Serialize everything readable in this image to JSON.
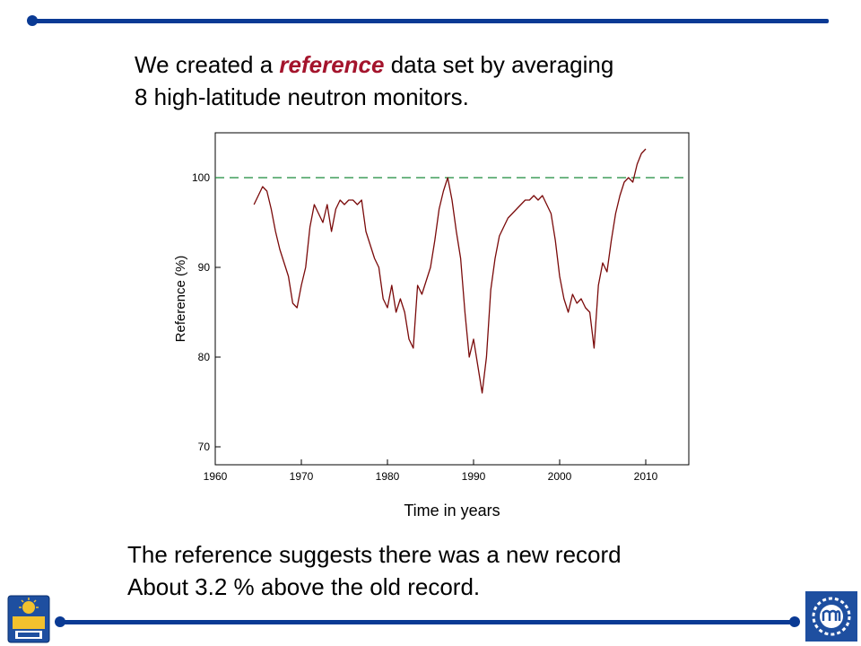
{
  "slide": {
    "headline_pre": "We created a ",
    "headline_em": "reference",
    "headline_post": " data set by averaging",
    "headline_line2": "8 high-latitude neutron monitors.",
    "caption_line1": "The reference suggests there was a new record",
    "caption_line2": "About 3.2 % above the old record."
  },
  "colors": {
    "accent_blue": "#0a3a94",
    "emphasis_red": "#a4142c",
    "series_line": "#7a0a0a",
    "reference_line": "#1a8a3a"
  },
  "logos": {
    "left_icon": "university-of-delaware-logo",
    "right_icon": "institution-laurel-logo"
  },
  "chart_data": {
    "type": "line",
    "title": "",
    "xlabel": "Time in years",
    "ylabel": "Reference (%)",
    "xlim": [
      1960,
      2015
    ],
    "ylim": [
      68,
      105
    ],
    "x_ticks": [
      1960,
      1970,
      1980,
      1990,
      2000,
      2010
    ],
    "y_ticks": [
      70,
      80,
      90,
      100
    ],
    "reference_line": {
      "y": 100,
      "style": "dashed"
    },
    "grid": false,
    "series": [
      {
        "x": [
          1964.5,
          1965.0,
          1965.5,
          1966.0,
          1966.5,
          1967.0,
          1967.5,
          1968.0,
          1968.5,
          1969.0,
          1969.5,
          1970.0,
          1970.5,
          1971.0,
          1971.5,
          1972.0,
          1972.5,
          1973.0,
          1973.5,
          1974.0,
          1974.5,
          1975.0,
          1975.5,
          1976.0,
          1976.5,
          1977.0,
          1977.5,
          1978.0,
          1978.5,
          1979.0,
          1979.5,
          1980.0,
          1980.5,
          1981.0,
          1981.5,
          1982.0,
          1982.5,
          1983.0,
          1983.5,
          1984.0,
          1984.5,
          1985.0,
          1985.5,
          1986.0,
          1986.5,
          1987.0,
          1987.5,
          1988.0,
          1988.5,
          1989.0,
          1989.5,
          1990.0,
          1990.5,
          1991.0,
          1991.5,
          1992.0,
          1992.5,
          1993.0,
          1993.5,
          1994.0,
          1994.5,
          1995.0,
          1995.5,
          1996.0,
          1996.5,
          1997.0,
          1997.5,
          1998.0,
          1998.5,
          1999.0,
          1999.5,
          2000.0,
          2000.5,
          2001.0,
          2001.5,
          2002.0,
          2002.5,
          2003.0,
          2003.5,
          2004.0,
          2004.5,
          2005.0,
          2005.5,
          2006.0,
          2006.5,
          2007.0,
          2007.5,
          2008.0,
          2008.5,
          2009.0,
          2009.5,
          2010.0
        ],
        "values": [
          97.0,
          98.0,
          99.0,
          98.5,
          96.5,
          94.0,
          92.0,
          90.5,
          89.0,
          86.0,
          85.5,
          88.0,
          90.0,
          94.5,
          97.0,
          96.0,
          95.0,
          97.0,
          94.0,
          96.5,
          97.5,
          97.0,
          97.5,
          97.5,
          97.0,
          97.5,
          94.0,
          92.5,
          91.0,
          90.0,
          86.5,
          85.5,
          88.0,
          85.0,
          86.5,
          85.0,
          82.0,
          81.0,
          88.0,
          87.0,
          88.5,
          90.0,
          93.0,
          96.5,
          98.5,
          100.0,
          97.5,
          94.0,
          91.0,
          85.0,
          80.0,
          82.0,
          79.0,
          76.0,
          80.0,
          87.5,
          91.0,
          93.5,
          94.5,
          95.5,
          96.0,
          96.5,
          97.0,
          97.5,
          97.5,
          98.0,
          97.5,
          98.0,
          97.0,
          96.0,
          93.0,
          89.0,
          86.5,
          85.0,
          87.0,
          86.0,
          86.5,
          85.5,
          85.0,
          81.0,
          88.0,
          90.5,
          89.5,
          93.0,
          96.0,
          98.0,
          99.5,
          100.0,
          99.5,
          101.5,
          102.7,
          103.2
        ]
      }
    ]
  }
}
